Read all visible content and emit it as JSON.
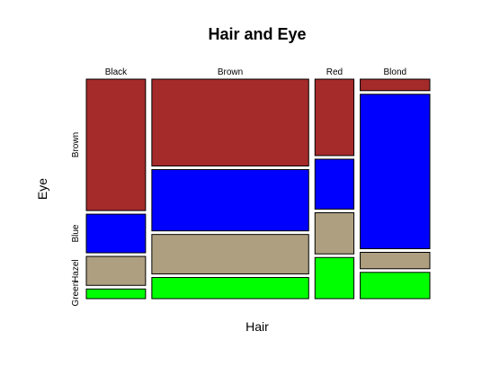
{
  "chart_data": {
    "type": "mosaic",
    "title": "Hair and Eye",
    "xlabel": "Hair",
    "ylabel": "Eye",
    "x_categories": [
      "Black",
      "Brown",
      "Red",
      "Blond"
    ],
    "y_categories": [
      "Brown",
      "Blue",
      "Hazel",
      "Green"
    ],
    "colors": {
      "Brown": "#a52a2a",
      "Blue": "#0000ff",
      "Hazel": "#ae9f80",
      "Green": "#00ff00"
    },
    "counts": {
      "Black": [
        68,
        20,
        15,
        5
      ],
      "Brown": [
        119,
        84,
        54,
        29
      ],
      "Red": [
        26,
        17,
        14,
        14
      ],
      "Blond": [
        7,
        94,
        10,
        16
      ]
    }
  }
}
